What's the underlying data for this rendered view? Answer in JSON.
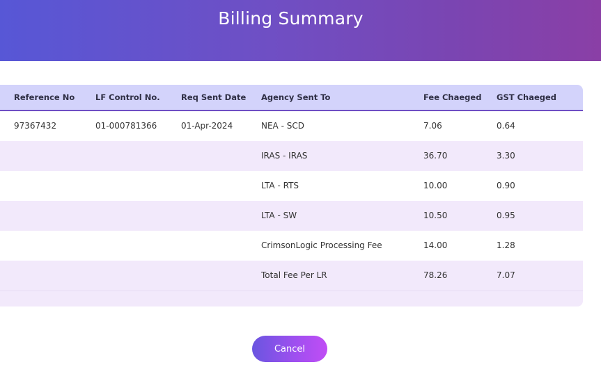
{
  "header": {
    "title": "Billing Summary"
  },
  "table": {
    "columns": {
      "reference_no": "Reference No",
      "lf_control_no": "LF Control No.",
      "req_sent_date": "Req Sent Date",
      "agency_sent_to": "Agency Sent To",
      "fee_charged": "Fee Chaeged",
      "gst_charged": "GST Chaeged"
    },
    "rows": [
      {
        "reference_no": "97367432",
        "lf_control_no": "01-000781366",
        "req_sent_date": "01-Apr-2024",
        "agency": "NEA - SCD",
        "fee": "7.06",
        "gst": "0.64"
      },
      {
        "reference_no": "",
        "lf_control_no": "",
        "req_sent_date": "",
        "agency": "IRAS - IRAS",
        "fee": "36.70",
        "gst": "3.30"
      },
      {
        "reference_no": "",
        "lf_control_no": "",
        "req_sent_date": "",
        "agency": "LTA - RTS",
        "fee": "10.00",
        "gst": "0.90"
      },
      {
        "reference_no": "",
        "lf_control_no": "",
        "req_sent_date": "",
        "agency": "LTA - SW",
        "fee": "10.50",
        "gst": "0.95"
      },
      {
        "reference_no": "",
        "lf_control_no": "",
        "req_sent_date": "",
        "agency": "CrimsonLogic Processing Fee",
        "fee": "14.00",
        "gst": "1.28"
      },
      {
        "reference_no": "",
        "lf_control_no": "",
        "req_sent_date": "",
        "agency": "Total Fee Per LR",
        "fee": "78.26",
        "gst": "7.07"
      }
    ]
  },
  "actions": {
    "cancel_label": "Cancel"
  },
  "colors": {
    "header_gradient_start": "#5757d6",
    "header_gradient_end": "#8a3fa6",
    "table_header_bg": "#d3d3fb",
    "row_alt_bg": "#f2e9fb",
    "button_gradient_start": "#6a55e0",
    "button_gradient_end": "#c04df5"
  }
}
